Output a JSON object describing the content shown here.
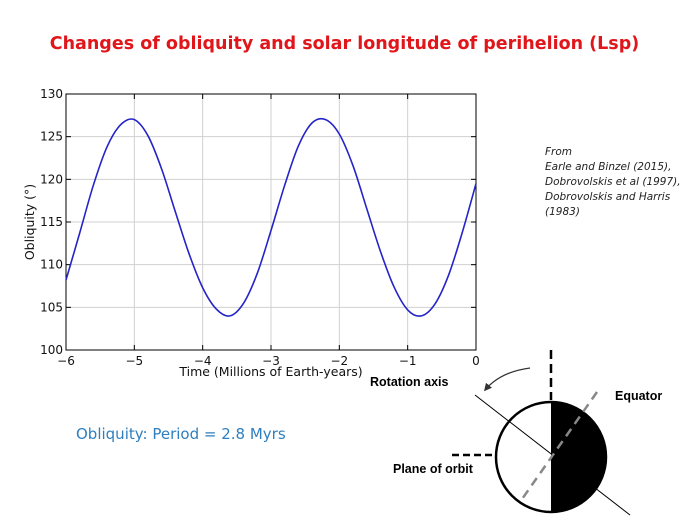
{
  "title": "Changes of obliquity and solar longitude of perihelion (Lsp)",
  "colors": {
    "title": "#e0161b",
    "series": "#2424c8",
    "note": "#2e7fbf",
    "grid": "#d0d0d0"
  },
  "reference": [
    "From",
    "Earle and Binzel (2015),",
    "Dobrovolskis et al (1997),",
    "Dobrovolskis and Harris",
    "(1983)"
  ],
  "period_note": "Obliquity: Period = 2.8 Myrs",
  "diagram": {
    "rotation_axis_label": "Rotation axis",
    "equator_label": "Equator",
    "plane_of_orbit_label": "Plane of orbit"
  },
  "chart_data": {
    "type": "line",
    "title": "",
    "xlabel": "Time (Millions of Earth-years)",
    "ylabel": "Obliquity (°)",
    "xlim": [
      -6,
      0
    ],
    "ylim": [
      100,
      130
    ],
    "x_ticks": [
      -6,
      -5,
      -4,
      -3,
      -2,
      -1,
      0
    ],
    "x_tick_labels": [
      "−6",
      "−5",
      "−4",
      "−3",
      "−2",
      "−1",
      "0"
    ],
    "y_ticks": [
      100,
      105,
      110,
      115,
      120,
      125,
      130
    ],
    "y_tick_labels": [
      "100",
      "105",
      "110",
      "115",
      "120",
      "125",
      "130"
    ],
    "grid": true,
    "series": [
      {
        "x": [
          -6.0,
          -5.8,
          -5.6,
          -5.4,
          -5.2,
          -5.0,
          -4.8,
          -4.6,
          -4.4,
          -4.2,
          -4.0,
          -3.8,
          -3.6,
          -3.4,
          -3.2,
          -3.0,
          -2.8,
          -2.6,
          -2.4,
          -2.2,
          -2.0,
          -1.8,
          -1.6,
          -1.4,
          -1.2,
          -1.0,
          -0.8,
          -0.6,
          -0.4,
          -0.2,
          0.0
        ],
        "values": [
          108.2,
          113.7,
          119.3,
          123.8,
          126.4,
          127.0,
          125.1,
          121.2,
          116.2,
          111.3,
          107.3,
          104.8,
          104.0,
          105.5,
          109.0,
          114.0,
          119.3,
          123.9,
          126.6,
          127.0,
          125.3,
          121.6,
          116.6,
          111.6,
          107.4,
          104.7,
          104.0,
          105.4,
          108.8,
          113.8,
          119.5
        ]
      }
    ]
  }
}
